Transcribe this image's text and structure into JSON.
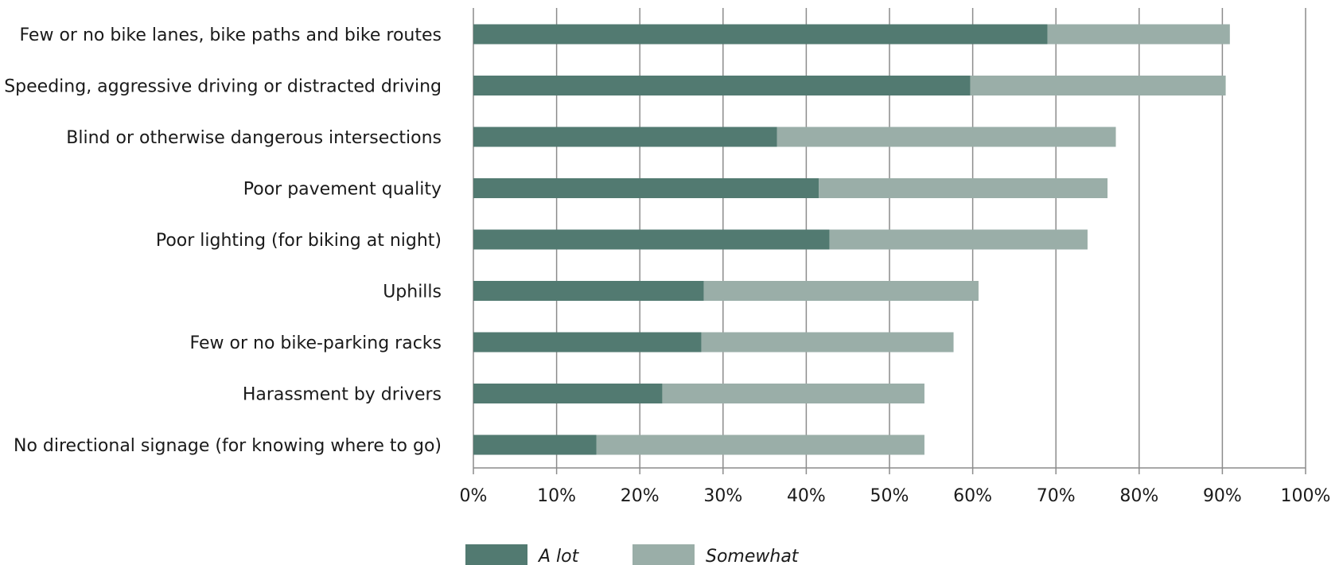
{
  "chart_data": {
    "type": "bar",
    "orientation": "horizontal",
    "stacked": true,
    "categories": [
      "Few or no bike lanes, bike paths and bike routes",
      "Speeding, aggressive driving or distracted driving",
      "Blind or otherwise dangerous intersections",
      "Poor pavement quality",
      "Poor lighting (for biking at night)",
      "Uphills",
      "Few or no bike-parking racks",
      "Harassment by drivers",
      "No directional signage (for knowing where to go)"
    ],
    "series": [
      {
        "name": "A lot",
        "color": "#527a71",
        "values": [
          69.0,
          59.7,
          36.5,
          41.5,
          42.8,
          27.7,
          27.4,
          22.7,
          14.8
        ]
      },
      {
        "name": "Somewhat",
        "color": "#9aaea8",
        "values": [
          21.9,
          30.7,
          40.7,
          34.7,
          31.0,
          33.0,
          30.3,
          31.5,
          39.4
        ]
      }
    ],
    "xlim": [
      0,
      100
    ],
    "x_ticks": [
      "0%",
      "10%",
      "20%",
      "30%",
      "40%",
      "50%",
      "60%",
      "70%",
      "80%",
      "90%",
      "100%"
    ],
    "grid": true,
    "gridline_color": "#8c8c8c",
    "legend_position": "bottom"
  }
}
